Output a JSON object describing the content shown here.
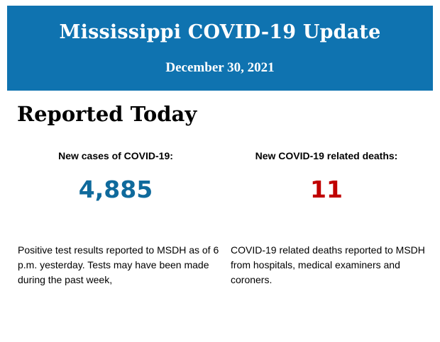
{
  "header": {
    "title": "Mississippi COVID-19 Update",
    "date": "December 30, 2021",
    "background_color": "#0f73b0"
  },
  "section": {
    "heading": "Reported Today"
  },
  "stats": {
    "cases": {
      "label": "New cases of COVID-19:",
      "value": "4,885",
      "color": "#0f6a9c",
      "description": "Positive test results reported to MSDH as of 6 p.m. yesterday. Tests may have been made during the past week,"
    },
    "deaths": {
      "label": "New COVID-19 related deaths:",
      "value": "11",
      "color": "#c00000",
      "description": "COVID-19 related deaths reported to MSDH from hospitals, medical examiners and coroners."
    }
  }
}
